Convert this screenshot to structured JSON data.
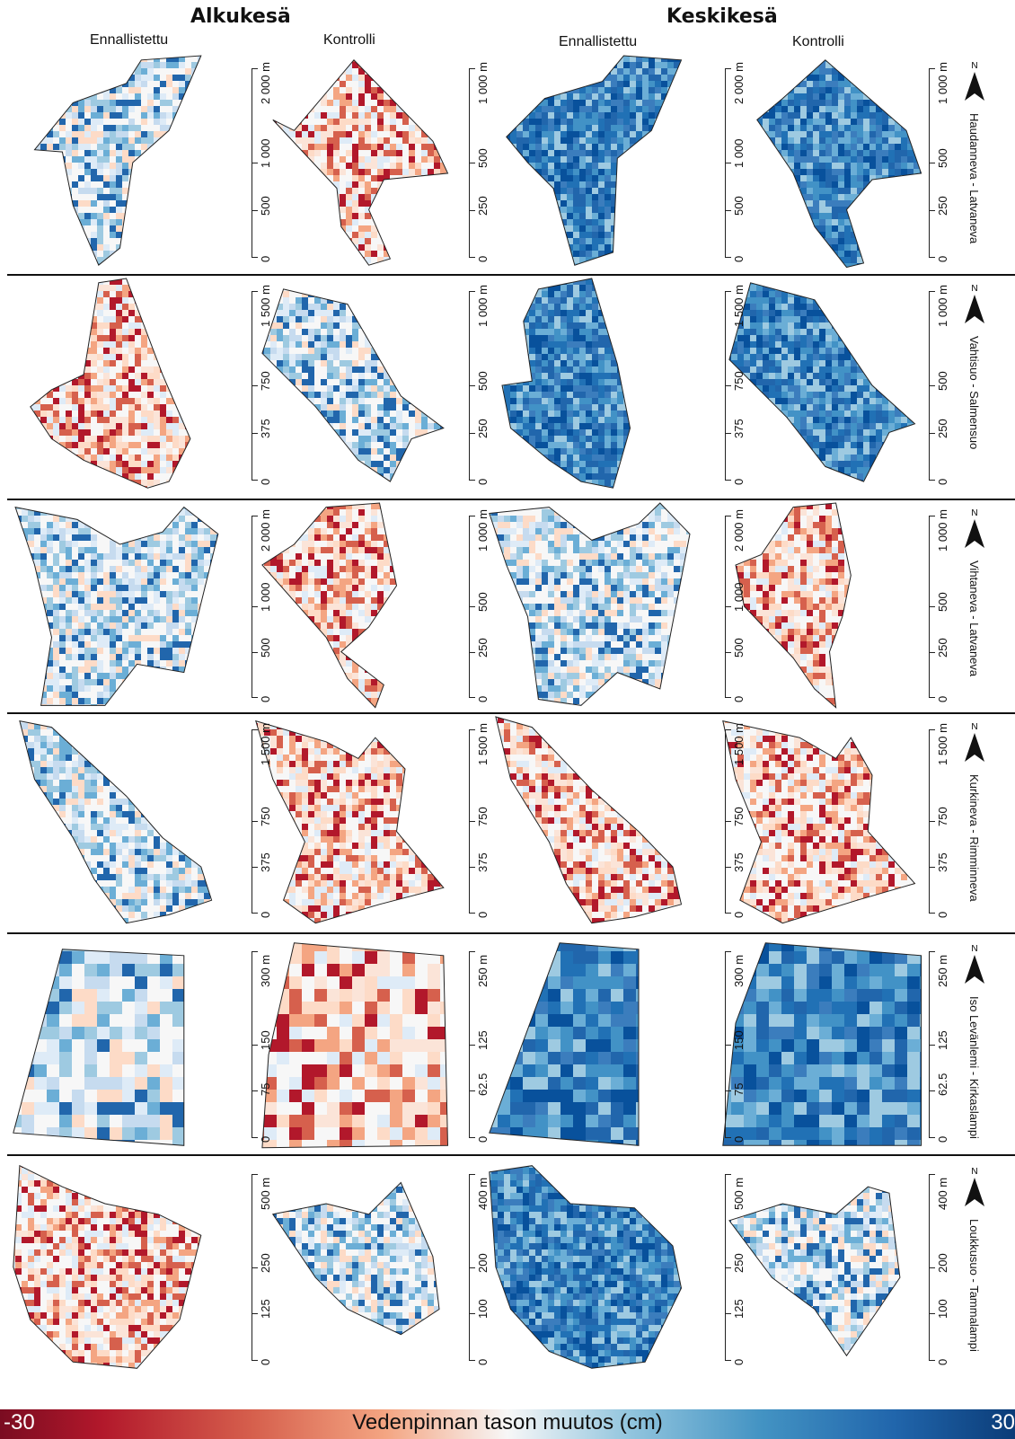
{
  "headers": {
    "early": "Alkukesä",
    "mid": "Keskikesä"
  },
  "subheaders": {
    "restored": "Ennallistettu",
    "control": "Kontrolli"
  },
  "rows": [
    {
      "site": "Haudanneva - Latvaneva",
      "scale_restored": [
        "0",
        "500",
        "1 000",
        "2 000 m"
      ],
      "scale_control": [
        "0",
        "250",
        "500",
        "1 000 m"
      ]
    },
    {
      "site": "Vahtisuo - Salmensuo",
      "scale_restored": [
        "0",
        "375",
        "750",
        "1 500 m"
      ],
      "scale_control": [
        "0",
        "250",
        "500",
        "1 000 m"
      ]
    },
    {
      "site": "Vihtaneva - Latvaneva",
      "scale_restored": [
        "0",
        "500",
        "1 000",
        "2 000 m"
      ],
      "scale_control": [
        "0",
        "250",
        "500",
        "1 000 m"
      ]
    },
    {
      "site": "Kurkineva - Rimminneva",
      "scale_restored": [
        "0",
        "375",
        "750",
        "1 500 m"
      ],
      "scale_control": [
        "0",
        "375",
        "750",
        "1 500 m"
      ]
    },
    {
      "site": "Iso Levänlemi - Kirkaslampi",
      "scale_restored": [
        "0",
        "75",
        "150",
        "300 m"
      ],
      "scale_control": [
        "0",
        "62.5",
        "125",
        "250 m"
      ]
    },
    {
      "site": "Loukkusuo - Tammalampi",
      "scale_restored": [
        "0",
        "125",
        "250",
        "500 m"
      ],
      "scale_control": [
        "0",
        "100",
        "200",
        "400 m"
      ]
    }
  ],
  "north_label": "N",
  "colorbar": {
    "min": "-30",
    "max": "30",
    "title": "Vedenpinnan tason muutos (cm)",
    "colors": [
      "#7a0c21",
      "#b2182b",
      "#d6604d",
      "#f4a582",
      "#f7f7f7",
      "#92c5de",
      "#4393c3",
      "#2166ac",
      "#0b3c78"
    ]
  },
  "panel_tones": [
    [
      "mixed-blue",
      "mixed-red",
      "strong-blue",
      "strong-blue"
    ],
    [
      "mixed-red",
      "mixed-blue",
      "strong-blue",
      "strong-blue"
    ],
    [
      "mixed-blue",
      "mixed-red",
      "mixed-blue",
      "mixed-red"
    ],
    [
      "mixed-blue",
      "mixed-red",
      "mixed-red",
      "mixed-red"
    ],
    [
      "mixed-blue",
      "mixed-red",
      "strong-blue",
      "strong-blue"
    ],
    [
      "mixed-red",
      "mixed-blue",
      "strong-blue",
      "mixed-blue"
    ]
  ]
}
